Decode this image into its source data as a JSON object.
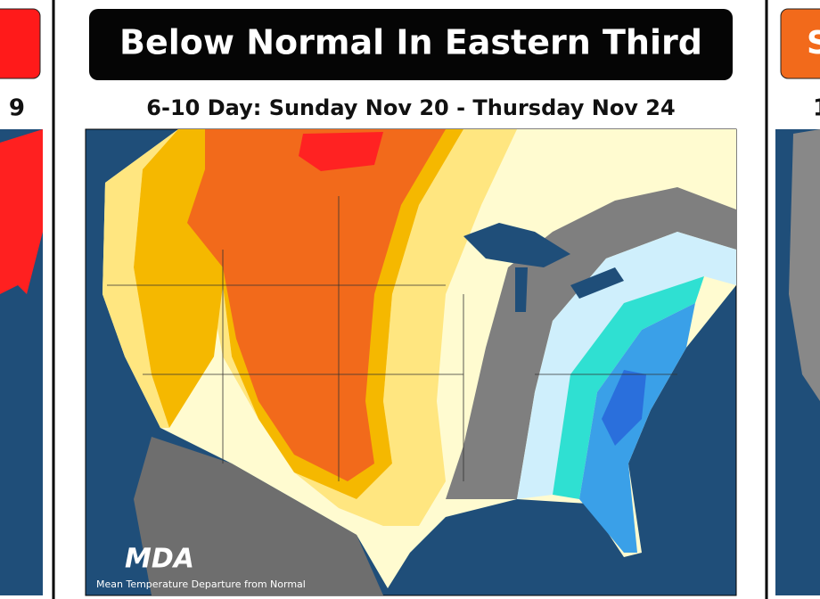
{
  "left_panel": {
    "date_fragment": "9"
  },
  "center_panel": {
    "title": "Below Normal In Eastern Third",
    "subtitle": "6-10 Day: Sunday Nov 20 - Thursday Nov 24",
    "logo": "MDA",
    "caption": "Mean Temperature Departure from Normal"
  },
  "right_panel": {
    "title_fragment": "S",
    "date_fragment": "1"
  }
}
